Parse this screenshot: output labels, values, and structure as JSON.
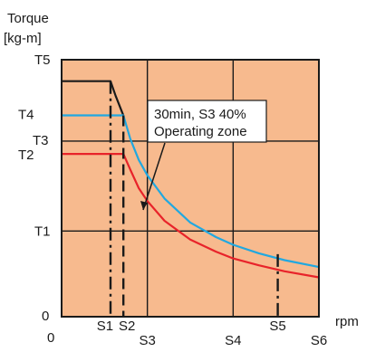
{
  "chart_data": {
    "type": "line",
    "ylabel": [
      "Torque",
      "[kg-m]"
    ],
    "xlabel": "rpm",
    "x_origin_label": "0",
    "y_origin_label": "0",
    "x_ticks": [
      "S1",
      "S2",
      "S3",
      "S4",
      "S5",
      "S6"
    ],
    "x_tick_values": [
      0.57,
      0.72,
      1.0,
      2.0,
      2.52,
      3.0
    ],
    "y_ticks": [
      "T1",
      "T2",
      "T3",
      "T4",
      "T5"
    ],
    "y_tick_values": [
      1.0,
      1.9,
      2.05,
      2.35,
      3.0
    ],
    "xlim": [
      0,
      3.0
    ],
    "ylim": [
      0,
      3.0
    ],
    "grid": true,
    "grid_x": [
      1.0,
      2.0
    ],
    "grid_y": [
      1.0,
      2.05
    ],
    "colors": {
      "background": "#F7BA8E",
      "frame": "#1a1a1a",
      "blue": "#21A8E0",
      "red": "#E8232A",
      "black": "#1a1a1a"
    },
    "series": [
      {
        "color": "black",
        "style": "solid",
        "x": [
          0,
          0.57,
          0.63,
          0.7,
          0.72
        ],
        "y": [
          2.75,
          2.75,
          2.58,
          2.4,
          2.35
        ]
      },
      {
        "color": "blue",
        "style": "solid",
        "x": [
          0,
          0.72,
          0.8,
          0.9,
          1.0,
          1.2,
          1.5,
          1.8,
          2.0,
          2.3,
          2.6,
          3.0
        ],
        "y": [
          2.35,
          2.35,
          2.08,
          1.83,
          1.65,
          1.38,
          1.1,
          0.93,
          0.84,
          0.74,
          0.66,
          0.58
        ]
      },
      {
        "color": "red",
        "style": "solid",
        "x": [
          0,
          0.72,
          0.8,
          0.9,
          1.0,
          1.2,
          1.5,
          1.8,
          2.0,
          2.3,
          2.6,
          3.0
        ],
        "y": [
          1.9,
          1.9,
          1.72,
          1.5,
          1.35,
          1.12,
          0.9,
          0.76,
          0.68,
          0.6,
          0.53,
          0.46
        ]
      },
      {
        "color": "black",
        "style": "dashdot",
        "x": [
          0.57,
          0.57
        ],
        "y": [
          2.75,
          0
        ]
      },
      {
        "color": "black",
        "style": "dashed",
        "x": [
          0.72,
          0.72
        ],
        "y": [
          2.35,
          0
        ]
      },
      {
        "color": "black",
        "style": "dashdot",
        "x": [
          2.52,
          2.52
        ],
        "y": [
          0.73,
          0
        ]
      }
    ],
    "annotation": {
      "lines": [
        "30min, S3 40%",
        "Operating zone"
      ]
    }
  }
}
